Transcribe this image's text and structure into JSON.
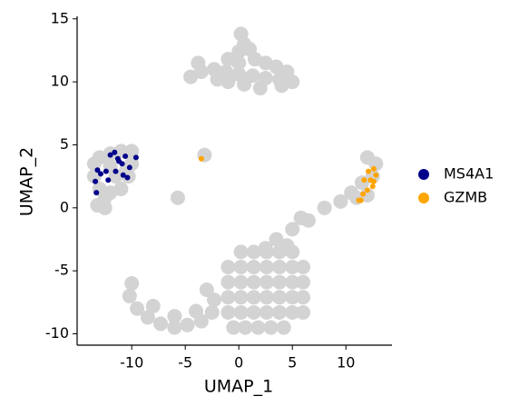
{
  "chart_data": {
    "type": "scatter",
    "x_label": "UMAP_1",
    "y_label": "UMAP_2",
    "xlim": [
      -15.1,
      14.3
    ],
    "ylim": [
      -10.9,
      15.2
    ],
    "xticks": [
      -10,
      -5,
      0,
      5,
      10
    ],
    "yticks": [
      -10,
      -5,
      0,
      5,
      10,
      15
    ],
    "grid": false,
    "legend": "right",
    "series": [
      {
        "color": "#d3d3d3",
        "x": [
          0.2,
          0.5,
          0,
          1,
          -1,
          0,
          1.5,
          2.5,
          3.5,
          4.5,
          5,
          3.8,
          2.5,
          1.3,
          0,
          -1.2,
          -2.3,
          -3.5,
          -4.5,
          -3.8,
          -2,
          4,
          2,
          0.5,
          -1,
          -13.5,
          -13,
          -12,
          -11,
          -10,
          -10,
          -10.3,
          -11,
          -12,
          -13,
          -13.5,
          -12.5,
          -13.2,
          -12.5,
          -11.5,
          -12,
          -10.5,
          11,
          12,
          12.5,
          12.8,
          11.5,
          12,
          10.5,
          9.5,
          8,
          6.5,
          5,
          5.8,
          3.5,
          4.5,
          2.5,
          0.2,
          1.4,
          2.6,
          3.8,
          5,
          -1,
          0.2,
          1.4,
          2.6,
          3.8,
          5,
          6,
          -1,
          0.2,
          1.4,
          2.6,
          3.8,
          5,
          6,
          -1,
          0.2,
          1.4,
          2.6,
          3.8,
          5,
          6,
          -1,
          0.2,
          1.4,
          2.6,
          3.8,
          5,
          6,
          -0.5,
          0.6,
          1.8,
          3,
          4.2,
          -10,
          -10.2,
          -9.5,
          -8.5,
          -7.3,
          -6,
          -4.8,
          -3.5,
          -2.5,
          -2.3,
          -3,
          -4,
          -6,
          -8,
          -5.7,
          -3.2
        ],
        "y": [
          13.8,
          13,
          12.4,
          12.6,
          11.8,
          11.5,
          11.8,
          11.5,
          11.2,
          10.8,
          10,
          10.2,
          10.3,
          10.5,
          10.6,
          10.8,
          11,
          10.8,
          10.4,
          11.5,
          10.2,
          9.7,
          9.5,
          9.8,
          10,
          3.5,
          4,
          4.3,
          4.5,
          4.5,
          3.5,
          2.5,
          1.5,
          1.2,
          1.5,
          2.5,
          0.8,
          0.2,
          0,
          2.5,
          3.3,
          3,
          0.8,
          1,
          2.5,
          3.5,
          2,
          4,
          1.2,
          0.5,
          0,
          -1,
          -1.7,
          -0.8,
          -2.5,
          -3,
          -3.2,
          -3.5,
          -3.5,
          -3.5,
          -3.5,
          -3.5,
          -4.7,
          -4.7,
          -4.7,
          -4.7,
          -4.7,
          -4.7,
          -4.7,
          -5.9,
          -5.9,
          -5.9,
          -5.9,
          -5.9,
          -5.9,
          -5.9,
          -7.1,
          -7.1,
          -7.1,
          -7.1,
          -7.1,
          -7.1,
          -7.1,
          -8.3,
          -8.3,
          -8.3,
          -8.3,
          -8.3,
          -8.3,
          -8.3,
          -9.5,
          -9.5,
          -9.5,
          -9.5,
          -9.5,
          -6,
          -7,
          -8,
          -8.7,
          -9.2,
          -9.5,
          -9.3,
          -9,
          -8.3,
          -7.3,
          -6.5,
          -8.2,
          -8.6,
          -7.8,
          0.8,
          4.2
        ]
      },
      {
        "name": "MS4A1",
        "color": "#00008b",
        "x": [
          -13.2,
          -13.4,
          -12.9,
          -12.4,
          -12.0,
          -11.6,
          -11.3,
          -11.5,
          -10.9,
          -10.6,
          -10.2,
          -9.6,
          -10.8,
          -12.2,
          -13.3,
          -11.2,
          -10.4
        ],
        "y": [
          3.0,
          2.1,
          2.7,
          2.9,
          4.2,
          4.4,
          3.9,
          2.9,
          3.5,
          4.1,
          3.2,
          4.0,
          2.6,
          2.2,
          1.2,
          3.7,
          2.4
        ]
      },
      {
        "name": "GZMB",
        "color": "#ffa500",
        "x": [
          -3.5,
          12.6,
          12.8,
          12.3,
          11.7,
          12.5,
          12.0,
          11.6,
          11.4,
          11.2,
          12.6,
          12.1
        ],
        "y": [
          3.9,
          3.1,
          2.6,
          2.2,
          2.2,
          1.7,
          1.4,
          1.1,
          0.6,
          0.6,
          2.1,
          2.9
        ]
      }
    ]
  }
}
